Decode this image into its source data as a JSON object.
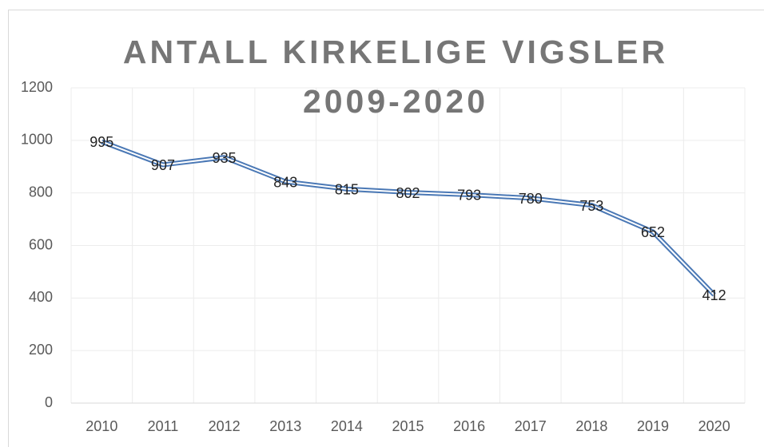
{
  "chart_data": {
    "type": "line",
    "title": "ANTALL KIRKELIGE VIGSLER 2009-2020",
    "categories": [
      "2010",
      "2011",
      "2012",
      "2013",
      "2014",
      "2015",
      "2016",
      "2017",
      "2018",
      "2019",
      "2020"
    ],
    "values": [
      995,
      907,
      935,
      843,
      815,
      802,
      793,
      780,
      753,
      652,
      412
    ],
    "color": "#4a78b5",
    "ylim": [
      0,
      1200
    ],
    "yticks": [
      0,
      200,
      400,
      600,
      800,
      1000,
      1200
    ],
    "grid": true
  }
}
